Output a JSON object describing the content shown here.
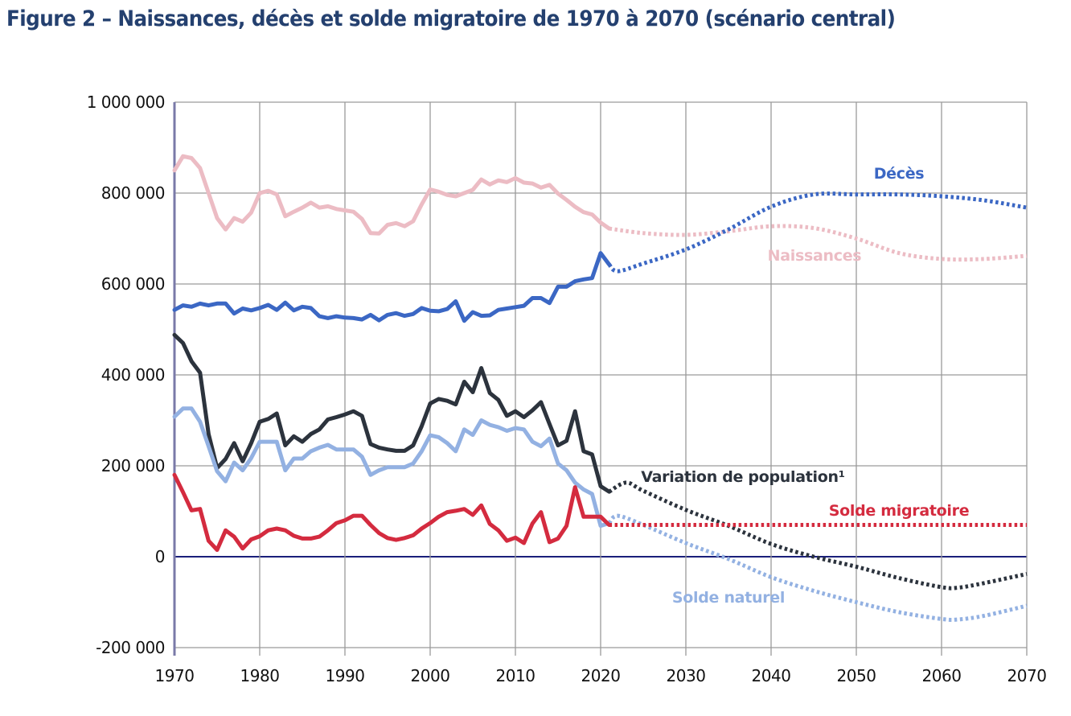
{
  "title": "Figure 2 – Naissances, décès et solde migratoire de 1970 à 2070 (scénario central)",
  "chart_data": {
    "type": "line",
    "title": "Figure 2 – Naissances, décès et solde migratoire de 1970 à 2070 (scénario central)",
    "xlabel": "",
    "ylabel": "",
    "xlim": [
      1970,
      2070
    ],
    "ylim": [
      -200000,
      1000000
    ],
    "x_ticks": [
      "1970",
      "1980",
      "1990",
      "2000",
      "2010",
      "2020",
      "2030",
      "2040",
      "2050",
      "2060",
      "2070"
    ],
    "y_ticks": [
      {
        "value": 1000000,
        "label": "1 000 000"
      },
      {
        "value": 800000,
        "label": "800 000"
      },
      {
        "value": 600000,
        "label": "600 000"
      },
      {
        "value": 400000,
        "label": "400 000"
      },
      {
        "value": 200000,
        "label": "200 000"
      },
      {
        "value": 0,
        "label": "0"
      },
      {
        "value": -200000,
        "label": "-200 000"
      }
    ],
    "grid": true,
    "legend": "inline labels",
    "note": "Solid lines: observed (1970–2021); dotted lines: projections (2021–2070)",
    "series": [
      {
        "name": "Naissances",
        "label": "Naissances",
        "color": "#ecbcc4",
        "observed": {
          "x": [
            1970,
            1971,
            1972,
            1973,
            1974,
            1975,
            1976,
            1977,
            1978,
            1979,
            1980,
            1981,
            1982,
            1983,
            1984,
            1985,
            1986,
            1987,
            1988,
            1989,
            1990,
            1991,
            1992,
            1993,
            1994,
            1995,
            1996,
            1997,
            1998,
            1999,
            2000,
            2001,
            2002,
            2003,
            2004,
            2005,
            2006,
            2007,
            2008,
            2009,
            2010,
            2011,
            2012,
            2013,
            2014,
            2015,
            2016,
            2017,
            2018,
            2019,
            2020,
            2021
          ],
          "y": [
            850000,
            881000,
            877000,
            855000,
            800000,
            745000,
            720000,
            745000,
            737000,
            757000,
            800000,
            805000,
            797000,
            749000,
            759000,
            768000,
            779000,
            768000,
            771000,
            765000,
            762000,
            759000,
            743000,
            712000,
            711000,
            730000,
            734000,
            727000,
            738000,
            775000,
            808000,
            803000,
            796000,
            793000,
            800000,
            807000,
            830000,
            819000,
            828000,
            824000,
            833000,
            823000,
            821000,
            812000,
            818000,
            799000,
            785000,
            770000,
            758000,
            753000,
            735000,
            722000
          ]
        },
        "projected": {
          "x": [
            2021,
            2025,
            2030,
            2035,
            2040,
            2045,
            2050,
            2055,
            2060,
            2065,
            2070
          ],
          "y": [
            722000,
            712000,
            708000,
            716000,
            727000,
            723000,
            700000,
            668000,
            655000,
            655000,
            662000
          ]
        }
      },
      {
        "name": "Décès",
        "label": "Décès",
        "color": "#3b67c4",
        "observed": {
          "x": [
            1970,
            1971,
            1972,
            1973,
            1974,
            1975,
            1976,
            1977,
            1978,
            1979,
            1980,
            1981,
            1982,
            1983,
            1984,
            1985,
            1986,
            1987,
            1988,
            1989,
            1990,
            1991,
            1992,
            1993,
            1994,
            1995,
            1996,
            1997,
            1998,
            1999,
            2000,
            2001,
            2002,
            2003,
            2004,
            2005,
            2006,
            2007,
            2008,
            2009,
            2010,
            2011,
            2012,
            2013,
            2014,
            2015,
            2016,
            2017,
            2018,
            2019,
            2020,
            2021
          ],
          "y": [
            543000,
            553000,
            550000,
            557000,
            553000,
            557000,
            557000,
            535000,
            546000,
            542000,
            547000,
            554000,
            543000,
            559000,
            542000,
            550000,
            547000,
            529000,
            525000,
            529000,
            526000,
            525000,
            522000,
            532000,
            520000,
            532000,
            536000,
            530000,
            534000,
            547000,
            541000,
            540000,
            545000,
            562000,
            519000,
            538000,
            530000,
            531000,
            543000,
            546000,
            549000,
            552000,
            569000,
            569000,
            558000,
            594000,
            594000,
            606000,
            610000,
            613000,
            668000,
            643000
          ]
        },
        "projected": {
          "x": [
            2021,
            2022,
            2025,
            2030,
            2035,
            2040,
            2045,
            2050,
            2055,
            2060,
            2065,
            2070
          ],
          "y": [
            643000,
            628000,
            645000,
            676000,
            720000,
            770000,
            797000,
            797000,
            797000,
            793000,
            784000,
            768000
          ]
        }
      },
      {
        "name": "Variation de population¹",
        "label": "Variation de population¹",
        "color": "#2c333d",
        "observed": {
          "x": [
            1970,
            1971,
            1972,
            1973,
            1974,
            1975,
            1976,
            1977,
            1978,
            1979,
            1980,
            1981,
            1982,
            1983,
            1984,
            1985,
            1986,
            1987,
            1988,
            1989,
            1990,
            1991,
            1992,
            1993,
            1994,
            1995,
            1996,
            1997,
            1998,
            1999,
            2000,
            2001,
            2002,
            2003,
            2004,
            2005,
            2006,
            2007,
            2008,
            2009,
            2010,
            2011,
            2012,
            2013,
            2014,
            2015,
            2016,
            2017,
            2018,
            2019,
            2020,
            2021
          ],
          "y": [
            488000,
            470000,
            430000,
            405000,
            270000,
            195000,
            215000,
            250000,
            210000,
            250000,
            297000,
            303000,
            315000,
            245000,
            265000,
            253000,
            270000,
            280000,
            302000,
            307000,
            313000,
            320000,
            310000,
            248000,
            240000,
            236000,
            233000,
            233000,
            245000,
            287000,
            337000,
            347000,
            343000,
            335000,
            385000,
            362000,
            415000,
            360000,
            345000,
            310000,
            320000,
            307000,
            322000,
            340000,
            292000,
            245000,
            255000,
            320000,
            232000,
            225000,
            155000,
            143000
          ]
        },
        "projected": {
          "x": [
            2021,
            2023,
            2025,
            2030,
            2035,
            2040,
            2045,
            2050,
            2055,
            2060,
            2062,
            2065,
            2070
          ],
          "y": [
            143000,
            163000,
            145000,
            103000,
            68000,
            28000,
            0,
            -22000,
            -47000,
            -67000,
            -68000,
            -58000,
            -38000
          ]
        }
      },
      {
        "name": "Solde naturel",
        "label": "Solde naturel",
        "color": "#93b1e2",
        "observed": {
          "x": [
            1970,
            1971,
            1972,
            1973,
            1974,
            1975,
            1976,
            1977,
            1978,
            1979,
            1980,
            1981,
            1982,
            1983,
            1984,
            1985,
            1986,
            1987,
            1988,
            1989,
            1990,
            1991,
            1992,
            1993,
            1994,
            1995,
            1996,
            1997,
            1998,
            1999,
            2000,
            2001,
            2002,
            2003,
            2004,
            2005,
            2006,
            2007,
            2008,
            2009,
            2010,
            2011,
            2012,
            2013,
            2014,
            2015,
            2016,
            2017,
            2018,
            2019,
            2020,
            2021
          ],
          "y": [
            308000,
            326000,
            326000,
            297000,
            243000,
            188000,
            166000,
            207000,
            190000,
            217000,
            253000,
            253000,
            253000,
            190000,
            216000,
            216000,
            232000,
            240000,
            246000,
            236000,
            236000,
            236000,
            220000,
            180000,
            190000,
            197000,
            197000,
            197000,
            205000,
            232000,
            267000,
            263000,
            250000,
            232000,
            280000,
            268000,
            300000,
            290000,
            285000,
            277000,
            283000,
            280000,
            253000,
            243000,
            260000,
            205000,
            190000,
            163000,
            148000,
            138000,
            68000,
            74000
          ]
        },
        "projected": {
          "x": [
            2021,
            2022,
            2025,
            2030,
            2035,
            2040,
            2045,
            2050,
            2055,
            2060,
            2062,
            2065,
            2070
          ],
          "y": [
            74000,
            90000,
            70000,
            30000,
            -5000,
            -45000,
            -75000,
            -100000,
            -122000,
            -137000,
            -138000,
            -130000,
            -108000
          ]
        }
      },
      {
        "name": "Solde migratoire",
        "label": "Solde migratoire",
        "color": "#d42b3f",
        "observed": {
          "x": [
            1970,
            1971,
            1972,
            1973,
            1974,
            1975,
            1976,
            1977,
            1978,
            1979,
            1980,
            1981,
            1982,
            1983,
            1984,
            1985,
            1986,
            1987,
            1988,
            1989,
            1990,
            1991,
            1992,
            1993,
            1994,
            1995,
            1996,
            1997,
            1998,
            1999,
            2000,
            2001,
            2002,
            2003,
            2004,
            2005,
            2006,
            2007,
            2008,
            2009,
            2010,
            2011,
            2012,
            2013,
            2014,
            2015,
            2016,
            2017,
            2018,
            2019,
            2020,
            2021
          ],
          "y": [
            180000,
            142000,
            102000,
            105000,
            35000,
            15000,
            58000,
            44000,
            18000,
            38000,
            45000,
            58000,
            62000,
            58000,
            46000,
            40000,
            40000,
            44000,
            58000,
            74000,
            80000,
            90000,
            90000,
            70000,
            52000,
            41000,
            37000,
            41000,
            47000,
            62000,
            74000,
            88000,
            98000,
            101000,
            105000,
            92000,
            113000,
            72000,
            58000,
            35000,
            42000,
            30000,
            73000,
            98000,
            32000,
            40000,
            68000,
            153000,
            88000,
            88000,
            88000,
            70000
          ]
        },
        "projected": {
          "x": [
            2021,
            2030,
            2040,
            2050,
            2060,
            2070
          ],
          "y": [
            70000,
            70000,
            70000,
            70000,
            70000,
            70000
          ]
        }
      }
    ]
  }
}
